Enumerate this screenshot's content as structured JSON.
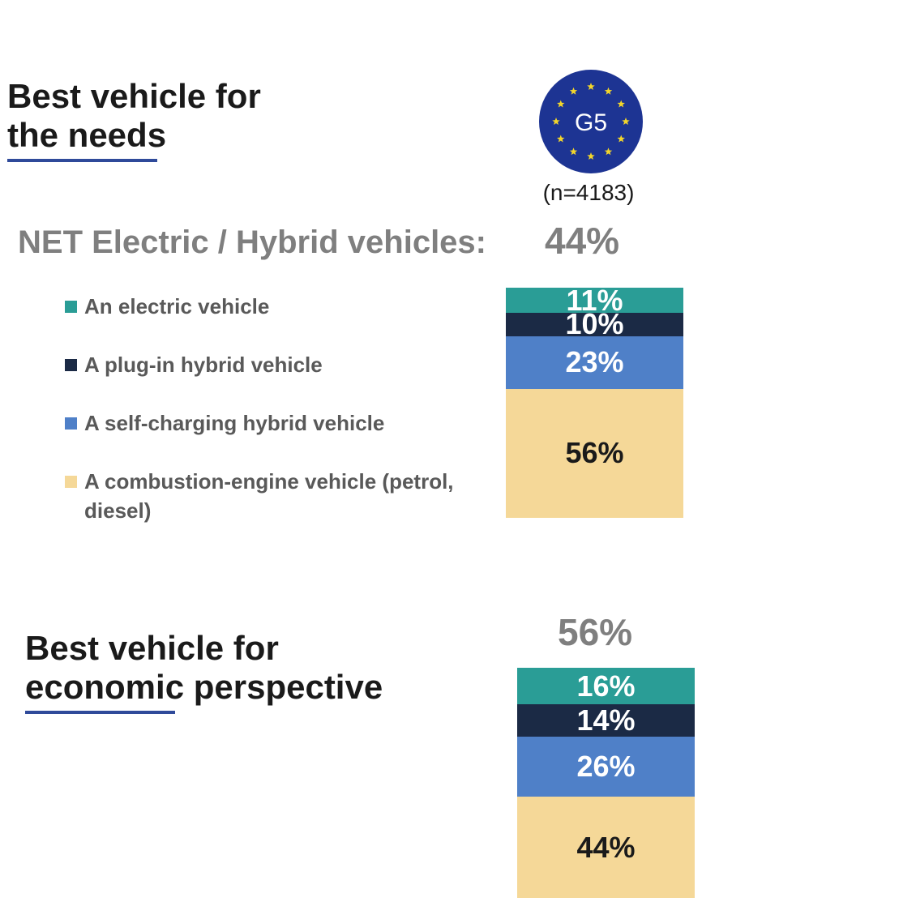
{
  "header": {
    "badge_text": "G5",
    "sample_size": "(n=4183)"
  },
  "section1": {
    "title_line1": "Best vehicle for",
    "title_line2": "the needs",
    "net_label": "NET Electric / Hybrid vehicles:",
    "net_value": "44%"
  },
  "section2": {
    "title_line1": "Best vehicle for",
    "title_line2": "economic perspective",
    "net_value": "56%"
  },
  "legend": {
    "items": [
      {
        "label": "An electric vehicle",
        "color": "#2a9d96"
      },
      {
        "label": "A plug-in hybrid vehicle",
        "color": "#1b2a45"
      },
      {
        "label": "A self-charging hybrid vehicle",
        "color": "#4f80c8"
      },
      {
        "label": "A combustion-engine vehicle (petrol, diesel)",
        "color": "#f5d898"
      }
    ]
  },
  "chart_data": [
    {
      "type": "bar",
      "stacked": true,
      "title": "Best vehicle for the needs",
      "categories": [
        "Best vehicle for the needs"
      ],
      "series": [
        {
          "name": "An electric vehicle",
          "values": [
            11
          ],
          "label": "11%",
          "color": "#2a9d96",
          "label_color": "#ffffff"
        },
        {
          "name": "A plug-in hybrid vehicle",
          "values": [
            10
          ],
          "label": "10%",
          "color": "#1b2a45",
          "label_color": "#ffffff"
        },
        {
          "name": "A self-charging hybrid vehicle",
          "values": [
            23
          ],
          "label": "23%",
          "color": "#4f80c8",
          "label_color": "#ffffff"
        },
        {
          "name": "A combustion-engine vehicle (petrol, diesel)",
          "values": [
            56
          ],
          "label": "56%",
          "color": "#f5d898",
          "label_color": "#1a1a1a"
        }
      ],
      "ylim": [
        0,
        100
      ],
      "unit": "%"
    },
    {
      "type": "bar",
      "stacked": true,
      "title": "Best vehicle for economic perspective",
      "categories": [
        "Best vehicle for economic perspective"
      ],
      "series": [
        {
          "name": "An electric vehicle",
          "values": [
            16
          ],
          "label": "16%",
          "color": "#2a9d96",
          "label_color": "#ffffff"
        },
        {
          "name": "A plug-in hybrid vehicle",
          "values": [
            14
          ],
          "label": "14%",
          "color": "#1b2a45",
          "label_color": "#ffffff"
        },
        {
          "name": "A self-charging hybrid vehicle",
          "values": [
            26
          ],
          "label": "26%",
          "color": "#4f80c8",
          "label_color": "#ffffff"
        },
        {
          "name": "A combustion-engine vehicle (petrol, diesel)",
          "values": [
            44
          ],
          "label": "44%",
          "color": "#f5d898",
          "label_color": "#1a1a1a"
        }
      ],
      "ylim": [
        0,
        100
      ],
      "unit": "%"
    }
  ]
}
